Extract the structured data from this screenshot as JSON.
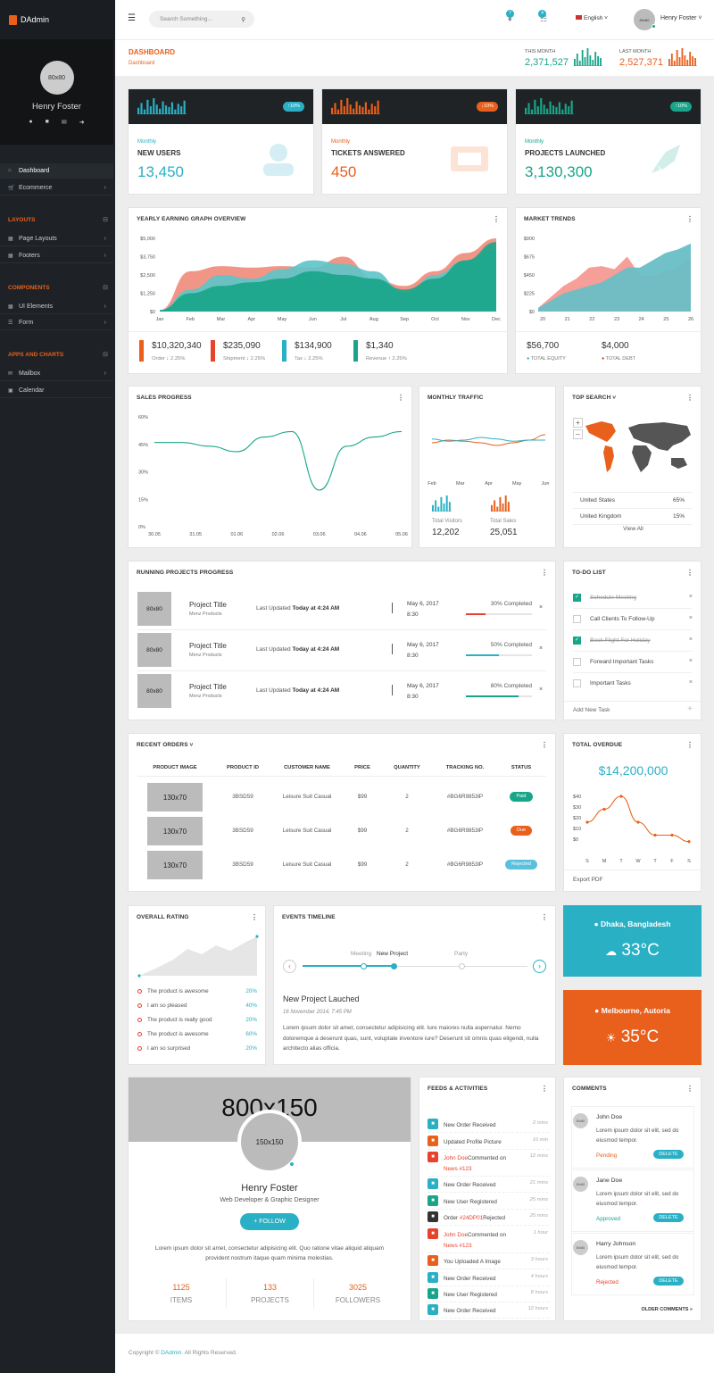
{
  "app": {
    "name": "DAdmin"
  },
  "sidebar": {
    "avatar": "80x80",
    "user": "Henry Foster",
    "items": [
      {
        "label": "Dashboard"
      },
      {
        "label": "Ecommerce"
      }
    ],
    "sections": [
      {
        "title": "LAYOUTS",
        "items": [
          {
            "label": "Page Layouts"
          },
          {
            "label": "Footers"
          }
        ]
      },
      {
        "title": "COMPONENTS",
        "items": [
          {
            "label": "UI Elements"
          },
          {
            "label": "Form"
          }
        ]
      },
      {
        "title": "APPS AND CHARTS",
        "items": [
          {
            "label": "Mailbox"
          },
          {
            "label": "Calendar"
          }
        ]
      }
    ]
  },
  "topbar": {
    "search_placeholder": "Search Something...",
    "notif_count": "7",
    "cart_count": "4",
    "language": "English",
    "user_name": "Henry Foster",
    "user_avatar": "80x80"
  },
  "page": {
    "title": "DASHBOARD",
    "breadcrumb": "Dashboard",
    "this_month_label": "THIS MONTH",
    "this_month_value": "2,371,527",
    "last_month_label": "LAST MONTH",
    "last_month_value": "2,527,371"
  },
  "stats": [
    {
      "pill": "10%",
      "sub": "Monthly",
      "title": "NEW USERS",
      "value": "13,450",
      "color": "#2ab0c5"
    },
    {
      "pill": "10%",
      "sub": "Monthly",
      "title": "TICKETS ANSWERED",
      "value": "450",
      "color": "#e8601c"
    },
    {
      "pill": "10%",
      "sub": "Monthly",
      "title": "PROJECTS LAUNCHED",
      "value": "3,130,300",
      "color": "#18a589"
    }
  ],
  "earning": {
    "title": "YEARLY EARNING GRAPH OVERVIEW",
    "yticks": [
      "$5,000",
      "$3,750",
      "$2,500",
      "$1,250",
      "$0"
    ],
    "months": [
      "Jan",
      "Feb",
      "Mar",
      "Apr",
      "May",
      "Jun",
      "Jul",
      "Aug",
      "Sep",
      "Oct",
      "Nov",
      "Dec"
    ],
    "stats": [
      {
        "value": "$10,320,340",
        "label": "Order",
        "change": "2.25%",
        "color": "#e8601c"
      },
      {
        "value": "$235,090",
        "label": "Shipment",
        "change": "2.25%",
        "color": "#e8412c"
      },
      {
        "value": "$134,900",
        "label": "Tax",
        "change": "2.25%",
        "color": "#2ab0c5"
      },
      {
        "value": "$1,340",
        "label": "Revenue",
        "change": "2.25%",
        "color": "#18a589"
      }
    ]
  },
  "market": {
    "title": "MARKET TRENDS",
    "yticks": [
      "$900",
      "$675",
      "$450",
      "$225",
      "$0"
    ],
    "xticks": [
      "20",
      "21",
      "22",
      "23",
      "24",
      "25",
      "26"
    ],
    "equity_value": "$56,700",
    "equity_label": "TOTAL EQUITY",
    "debt_value": "$4,000",
    "debt_label": "TOTAL DEBT"
  },
  "sales": {
    "title": "SALES PROGRESS",
    "yticks": [
      "60%",
      "45%",
      "30%",
      "15%",
      "0%"
    ],
    "xticks": [
      "30.05",
      "31.05",
      "01.06",
      "02.06",
      "03.06",
      "04.06",
      "05.06"
    ]
  },
  "traffic": {
    "title": "MONTHLY TRAFFIC",
    "xticks": [
      "Feb",
      "Mar",
      "Apr",
      "May",
      "Jun"
    ],
    "visitors_label": "Total Visitors",
    "visitors_value": "12,202",
    "sales_label": "Total Sales",
    "sales_value": "25,051"
  },
  "topsearch": {
    "title": "TOP SEARCH",
    "rows": [
      {
        "country": "United States",
        "pct": "65%"
      },
      {
        "country": "United Kingdom",
        "pct": "15%"
      }
    ],
    "view_all": "View All"
  },
  "projects": {
    "title": "RUNNING PROJECTS PROGRESS",
    "items": [
      {
        "thumb": "80x80",
        "name": "Project Title",
        "company": "Menz Products",
        "updated_label": "Last Updated",
        "updated": "Today at 4:24 AM",
        "date": "May 6, 2017",
        "time": "8:30",
        "progress_text": "30% Completed",
        "progress": 0.3,
        "color": "#e8412c"
      },
      {
        "thumb": "80x80",
        "name": "Project Title",
        "company": "Menz Products",
        "updated_label": "Last Updated",
        "updated": "Today at 4:24 AM",
        "date": "May 6, 2017",
        "time": "8:30",
        "progress_text": "50% Completed",
        "progress": 0.5,
        "color": "#2ab0c5"
      },
      {
        "thumb": "80x80",
        "name": "Project Title",
        "company": "Menz Products",
        "updated_label": "Last Updated",
        "updated": "Today at 4:24 AM",
        "date": "May 6, 2017",
        "time": "8:30",
        "progress_text": "80% Completed",
        "progress": 0.8,
        "color": "#18a589"
      }
    ]
  },
  "todo": {
    "title": "TO-DO LIST",
    "items": [
      {
        "text": "Schedule Meeting",
        "done": true
      },
      {
        "text": "Call Clients To Follow-Up",
        "done": false
      },
      {
        "text": "Book Flight For Holiday",
        "done": true
      },
      {
        "text": "Forward Important Tasks",
        "done": false
      },
      {
        "text": "Important Tasks",
        "done": false
      }
    ],
    "add": "Add New Task"
  },
  "orders": {
    "title": "RECENT ORDERS",
    "headers": [
      "PRODUCT IMAGE",
      "PRODUCT ID",
      "CUSTOMER NAME",
      "PRICE",
      "QUANTITY",
      "TRACKING NO.",
      "STATUS"
    ],
    "rows": [
      {
        "img": "130x70",
        "id": "3BSD59",
        "customer": "Leisure Suit Casual",
        "price": "$99",
        "qty": "2",
        "tracking": "#BG6R9853lP",
        "status": "Paid",
        "color": "#18a589"
      },
      {
        "img": "130x70",
        "id": "3BSD59",
        "customer": "Leisure Suit Casual",
        "price": "$99",
        "qty": "2",
        "tracking": "#BG6R9853lP",
        "status": "Due",
        "color": "#e8601c"
      },
      {
        "img": "130x70",
        "id": "3BSD59",
        "customer": "Leisure Suit Casual",
        "price": "$99",
        "qty": "2",
        "tracking": "#BG6R9853lP",
        "status": "Rejected",
        "color": "#5bc0de"
      }
    ]
  },
  "overdue": {
    "title": "TOTAL OVERDUE",
    "value": "$14,200,000",
    "yticks": [
      "$40",
      "$30",
      "$20",
      "$10",
      "$0"
    ],
    "xticks": [
      "S",
      "M",
      "T",
      "W",
      "T",
      "F",
      "S"
    ],
    "export": "Export PDF"
  },
  "rating": {
    "title": "OVERALL RATING",
    "items": [
      {
        "text": "The product is awesome",
        "pct": "20%"
      },
      {
        "text": "I am so pleased",
        "pct": "40%"
      },
      {
        "text": "The product is really good",
        "pct": "20%"
      },
      {
        "text": "The product is awesome",
        "pct": "60%"
      },
      {
        "text": "I am so surprised",
        "pct": "20%"
      }
    ]
  },
  "events": {
    "title": "EVENTS TIMELINE",
    "labels": [
      "Meeting",
      "New Project",
      "Party"
    ],
    "heading": "New Project Lauched",
    "date": "16 November 2014, 7:45 PM",
    "body": "Lorem ipsum dolor sit amet, consectetur adipisicing elit. Iure maiores nulla aspernatur. Nemo doloremque a deserunt quas, sunt, voluptate inventore iure? Deserunt sit omnis quas eligendi, nulla architecto alias officia."
  },
  "weather": [
    {
      "city": "Dhaka, Bangladesh",
      "temp": "33°C",
      "color": "#2ab0c5"
    },
    {
      "city": "Melbourne, Autoria",
      "temp": "35°C",
      "color": "#e8601c"
    }
  ],
  "profile": {
    "cover": "800x150",
    "avatar": "150x150",
    "name": "Henry Foster",
    "role": "Web Developer & Graphic Designer",
    "follow": "+ FOLLOW",
    "bio": "Lorem ipsum dolor sit amet, consectetur adipisicing elit. Quo ratione vitae aliquid aliquam provident nostrum itaque quam minima molestias.",
    "stats": [
      {
        "value": "1125",
        "label": "ITEMS"
      },
      {
        "value": "133",
        "label": "PROJECTS"
      },
      {
        "value": "3025",
        "label": "FOLLOWERS"
      }
    ]
  },
  "feeds": {
    "title": "FEEDS & ACTIVITIES",
    "items": [
      {
        "pre": "New Order Received",
        "link": "",
        "post": "",
        "time": "2 mins",
        "color": "#2ab0c5",
        "icon": "cart-icon"
      },
      {
        "pre": "Updated Profile Picture",
        "link": "",
        "post": "",
        "time": "10 min",
        "color": "#e8601c",
        "icon": "user-icon"
      },
      {
        "pre": "",
        "link": "John Doe",
        "post": "Commented on",
        "link2": "News #123",
        "time": "12 mins",
        "color": "#e8412c",
        "icon": "comment-icon"
      },
      {
        "pre": "New Order Received",
        "link": "",
        "post": "",
        "time": "21 mins",
        "color": "#2ab0c5",
        "icon": "cart-icon"
      },
      {
        "pre": "New User Registered",
        "link": "",
        "post": "",
        "time": "25 mins",
        "color": "#18a589",
        "icon": "user-icon"
      },
      {
        "pre": "Order ",
        "link": "#24DP01",
        "post": "Rejected",
        "time": "25 mins",
        "color": "#333333",
        "icon": "close-icon"
      },
      {
        "pre": "",
        "link": "John Doe",
        "post": "Commented on",
        "link2": "News #123",
        "time": "1 hour",
        "color": "#e8412c",
        "icon": "comment-icon"
      },
      {
        "pre": "You Uploaded A Image",
        "link": "",
        "post": "",
        "time": "3 hours",
        "color": "#e8601c",
        "icon": "upload-icon"
      },
      {
        "pre": "New Order Received",
        "link": "",
        "post": "",
        "time": "4 hours",
        "color": "#2ab0c5",
        "icon": "cart-icon"
      },
      {
        "pre": "New User Registered",
        "link": "",
        "post": "",
        "time": "8 hours",
        "color": "#18a589",
        "icon": "user-icon"
      },
      {
        "pre": "New Order Received",
        "link": "",
        "post": "",
        "time": "12 hours",
        "color": "#2ab0c5",
        "icon": "cart-icon"
      }
    ]
  },
  "comments": {
    "title": "COMMENTS",
    "items": [
      {
        "name": "John Doe",
        "text": "Lorem ipsum dolor sit elit, sed do eiusmod tempor.",
        "status": "Pending",
        "status_color": "#e8601c",
        "delete": "DELETE",
        "avatar": "80x80"
      },
      {
        "name": "Jane Doe",
        "text": "Lorem ipsum dolor sit elit, sed do eiusmod tempor.",
        "status": "Approved",
        "status_color": "#18a589",
        "delete": "DELETE",
        "avatar": "80x80"
      },
      {
        "name": "Harry Johnson",
        "text": "Lorem ipsum dolor sit elit, sed do eiusmod tempor.",
        "status": "Rejected",
        "status_color": "#e8412c",
        "delete": "DELETE",
        "avatar": "80x80"
      }
    ],
    "older": "OLDER COMMENTS"
  },
  "footer": {
    "pre": "Copyright ©",
    "brand": "DAdmin",
    "post": ". All Rights Reserved."
  }
}
